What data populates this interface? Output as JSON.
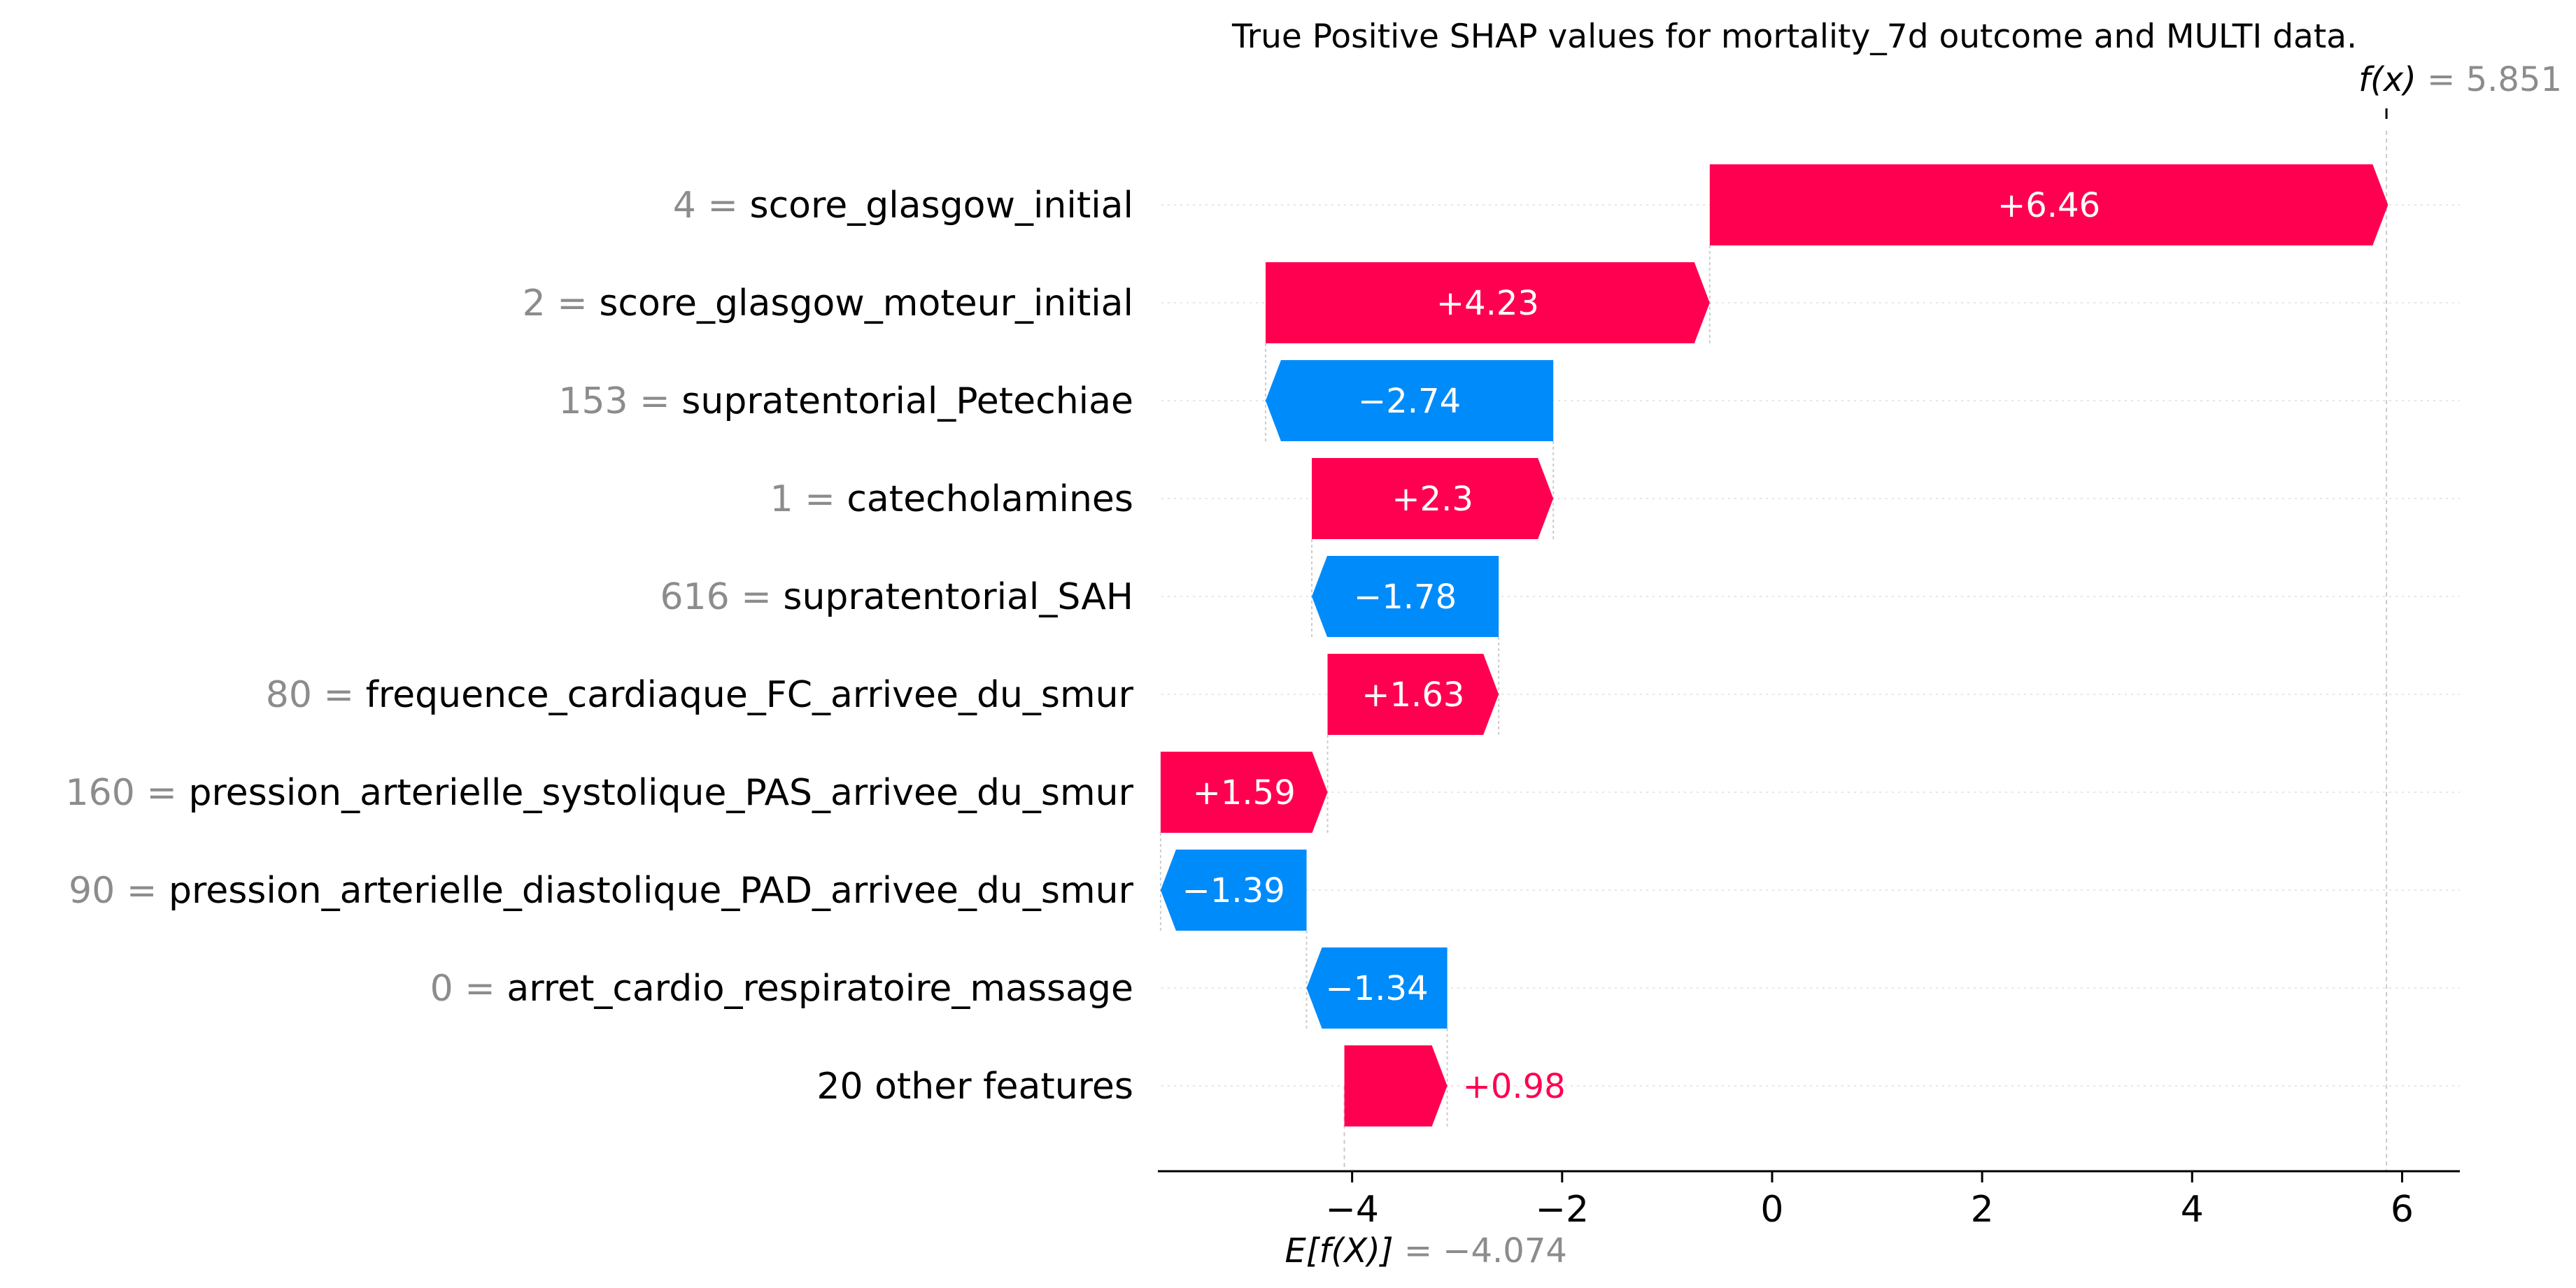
{
  "chart_data": {
    "type": "waterfall",
    "title": "True Positive SHAP values for mortality_7d outcome and MULTI data.",
    "base_value": -4.074,
    "final_value": 5.851,
    "base_label": {
      "name": "E[f(X)]",
      "value_text": "= −4.074"
    },
    "final_label": {
      "name": "f(x)",
      "value_text": "= 5.851"
    },
    "xlim": [
      -5.85,
      6.55
    ],
    "x_ticks": [
      {
        "value": -4,
        "label": "−4"
      },
      {
        "value": -2,
        "label": "−2"
      },
      {
        "value": 0,
        "label": "0"
      },
      {
        "value": 2,
        "label": "2"
      },
      {
        "value": 4,
        "label": "4"
      },
      {
        "value": 6,
        "label": "6"
      }
    ],
    "features": [
      {
        "feature_value": "4",
        "feature_name": "score_glasgow_initial",
        "shap": 6.46,
        "shap_label": "+6.46"
      },
      {
        "feature_value": "2",
        "feature_name": "score_glasgow_moteur_initial",
        "shap": 4.23,
        "shap_label": "+4.23"
      },
      {
        "feature_value": "153",
        "feature_name": "supratentorial_Petechiae",
        "shap": -2.74,
        "shap_label": "−2.74"
      },
      {
        "feature_value": "1",
        "feature_name": "catecholamines",
        "shap": 2.3,
        "shap_label": "+2.3"
      },
      {
        "feature_value": "616",
        "feature_name": "supratentorial_SAH",
        "shap": -1.78,
        "shap_label": "−1.78"
      },
      {
        "feature_value": "80",
        "feature_name": "frequence_cardiaque_FC_arrivee_du_smur",
        "shap": 1.63,
        "shap_label": "+1.63"
      },
      {
        "feature_value": "160",
        "feature_name": "pression_arterielle_systolique_PAS_arrivee_du_smur",
        "shap": 1.59,
        "shap_label": "+1.59"
      },
      {
        "feature_value": "90",
        "feature_name": "pression_arterielle_diastolique_PAD_arrivee_du_smur",
        "shap": -1.39,
        "shap_label": "−1.39"
      },
      {
        "feature_value": "0",
        "feature_name": "arret_cardio_respiratoire_massage",
        "shap": -1.34,
        "shap_label": "−1.34"
      },
      {
        "feature_value": "",
        "feature_name": "20 other features",
        "shap": 0.98,
        "shap_label": "+0.98"
      }
    ],
    "colors": {
      "positive": "#ff0051",
      "negative": "#008bfb",
      "axis": "#000000",
      "gridline": "#cccccc",
      "muted_text": "#8c8c8c"
    },
    "grid": false
  }
}
